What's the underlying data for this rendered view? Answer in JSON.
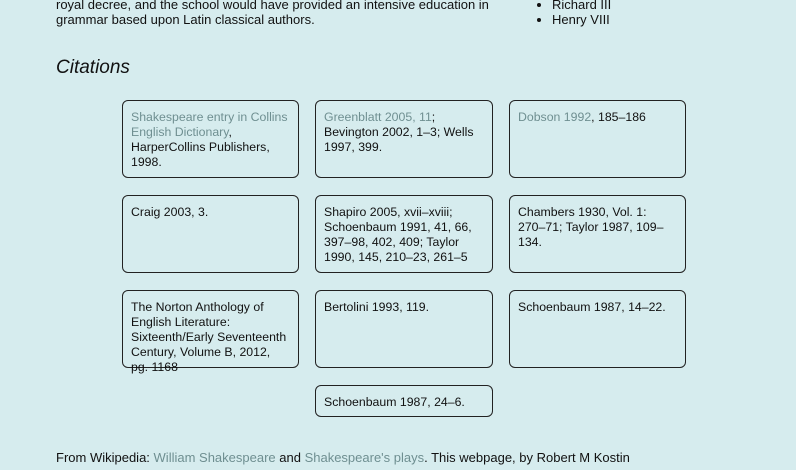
{
  "intro": {
    "line1": "royal decree, and the school would have provided an intensive education in",
    "line2": "grammar based upon Latin classical authors."
  },
  "kings": [
    "Richard III",
    "Henry VIII"
  ],
  "section_title": "Citations",
  "citations": [
    {
      "link": "Shakespeare entry in Collins English Dictionary",
      "text": ", HarperCollins Publishers, 1998."
    },
    {
      "link": "Greenblatt 2005, 11",
      "text": "; Bevington 2002, 1–3; Wells 1997, 399."
    },
    {
      "link": "Dobson 1992",
      "text": ", 185–186"
    },
    {
      "link": "",
      "text": "Craig 2003, 3."
    },
    {
      "link": "",
      "text": "Shapiro 2005, xvii–xviii; Schoenbaum 1991, 41, 66, 397–98, 402, 409; Taylor 1990, 145, 210–23, 261–5"
    },
    {
      "link": "",
      "text": "Chambers 1930, Vol. 1: 270–71; Taylor 1987, 109–134."
    },
    {
      "link": "",
      "text": "The Norton Anthology of English Literature: Sixteenth/Early Seventeenth Century, Volume B, 2012, pg. 1168"
    },
    {
      "link": "",
      "text": "Bertolini 1993, 119."
    },
    {
      "link": "",
      "text": "Schoenbaum 1987, 14–22."
    },
    {
      "link": "",
      "text": "Schoenbaum 1987, 24–6."
    }
  ],
  "footer": {
    "prefix": "From Wikipedia: ",
    "link1": "William Shakespeare",
    "middle": " and ",
    "link2": "Shakespeare's plays",
    "suffix": ". This webpage, by Robert M Kostin"
  }
}
